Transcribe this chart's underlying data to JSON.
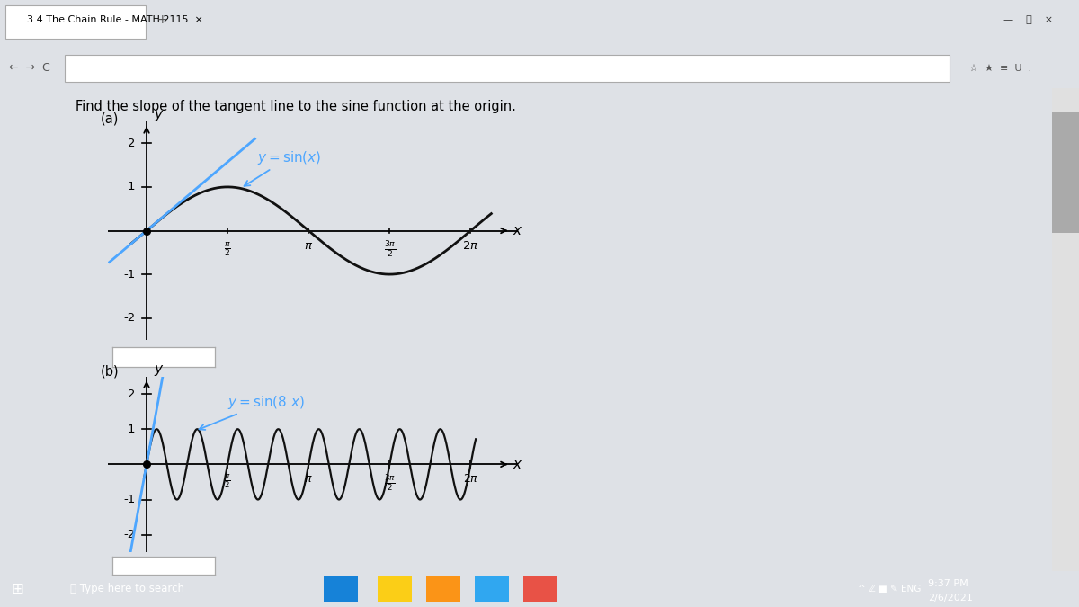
{
  "title": "Find the slope of the tangent line to the sine function at the origin.",
  "title_fontsize": 10.5,
  "browser_bar_color": "#dee1e6",
  "content_bg": "#ffffff",
  "taskbar_color": "#1a1a2e",
  "curve_color": "#111111",
  "tangent_color": "#4da6ff",
  "annotation_color": "#4da6ff",
  "label_sin_x": "y = sin(x)",
  "label_sin_8x": "y = sin(8 x)",
  "tangent_slope_a": 1.0,
  "tangent_slope_b": 8.0,
  "xlim_a": [
    -0.75,
    7.2
  ],
  "ylim_a": [
    -2.5,
    2.5
  ],
  "xlim_b": [
    -0.75,
    7.2
  ],
  "ylim_b": [
    -2.5,
    2.5
  ],
  "pi": 3.14159265358979
}
